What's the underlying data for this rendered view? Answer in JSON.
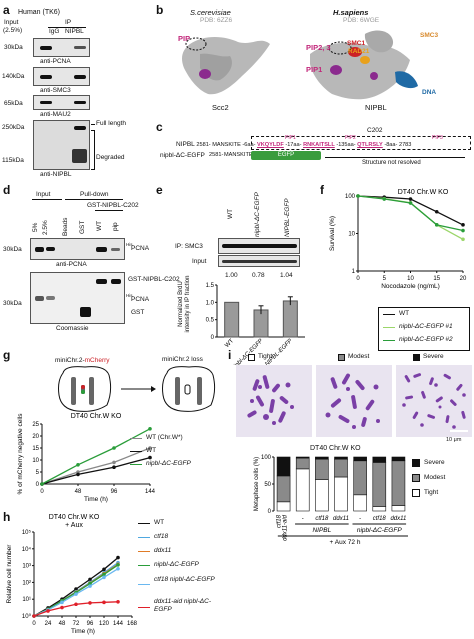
{
  "panel_a": {
    "label": "a",
    "title": "Human (TK6)",
    "input_label": "Input",
    "input_pct": "(2.5%)",
    "ip_label": "IP",
    "lane_igg": "IgG",
    "lane_nipbl": "NIPBL",
    "mw": [
      "30kDa",
      "140kDa",
      "65kDa",
      "250kDa",
      "115kDa"
    ],
    "antibodies": [
      "anti-PCNA",
      "anti-SMC3",
      "anti-MAU2",
      "anti-NIPBL"
    ],
    "full_length": "Full length",
    "degraded": "Degraded"
  },
  "panel_b": {
    "label": "b",
    "left_species": "S.cerevisiae",
    "left_pdb": "PDB: 6ZZ6",
    "left_pip": "PIP",
    "left_protein": "Scc2",
    "right_species": "H.sapiens",
    "right_pdb": "PDB: 6WGE",
    "right_smc3": "SMC3",
    "right_smc1": "SMC1",
    "right_rad21": "RAD21",
    "right_pip23": "PIP2, 3",
    "right_pip1": "PIP1",
    "right_dna": "DNA",
    "right_protein": "NIPBL"
  },
  "panel_c": {
    "label": "c",
    "c202": "C202",
    "nipbl_name": "NIPBL",
    "nipbl_start": "2581-",
    "motif": "MANSKITE",
    "gap1": "-6aa-",
    "pip1_label": "PIP1",
    "pip1_seq": "VKQYLDF",
    "gap2": "-17aa-",
    "pip2_label": "PIP2",
    "pip2_seq": "RNKAITSLL",
    "gap3": "-135aa-",
    "pip3_label": "PIP3",
    "pip3_seq": "QTLRSLY",
    "gap4": "-8aa-",
    "nipbl_end": "2783",
    "mut_name": "nipbl-ΔC-EGFP",
    "mut_start": "2581-",
    "egfp": "EGFP",
    "unresolved": "Structure not resolved"
  },
  "panel_d": {
    "label": "d",
    "input": "Input",
    "pulldown": "Pull-down",
    "fusion_header": "GST-NIPBL-C202",
    "lanes": [
      "5%",
      "2.5%",
      "Beads",
      "GST",
      "WT",
      "pip"
    ],
    "mw": [
      "30kDa",
      "30kDa"
    ],
    "pcna": "PCNA",
    "his": "His",
    "anti_pcna": "anti-PCNA",
    "gst_fusion": "GST-NIPBL-C202",
    "his_pcna": "PCNA",
    "gst": "GST",
    "coomassie": "Coomassie"
  },
  "panel_e": {
    "label": "e",
    "lanes": [
      "WT",
      "nipbl-ΔC-EGFP",
      "NIPBL-EGFP"
    ],
    "ip_label": "IP: SMC3",
    "input_label": "Input",
    "values_text": [
      "1.00",
      "0.78",
      "1.04"
    ],
    "ylabel": "Normalized BrdU intensity in IP fraction"
  },
  "panel_f": {
    "label": "f",
    "legend": [
      "WT",
      "nipbl-ΔC-EGFP #1",
      "nipbl-ΔC-EGFP #2"
    ]
  },
  "panel_g": {
    "label": "g",
    "mini_left": "miniChr.2-",
    "mcherry": "mCherry",
    "mini_right": "miniChr.2 loss",
    "legend": [
      "WT (Chr.W*)",
      "WT",
      "nipbl-ΔC-EGFP"
    ]
  },
  "panel_h": {
    "label": "h",
    "legend": [
      "WT",
      "ctf18",
      "ddx11",
      "nipbl-ΔC-EGFP",
      "ctf18 nipbl-ΔC-EGFP",
      "ddx11-aid nipbl-ΔC-EGFP"
    ]
  },
  "panel_i": {
    "label": "i",
    "legend_top": [
      "Tight",
      "Modest",
      "Severe"
    ],
    "scale_bar": "10 μm",
    "legend_right": [
      "Severe",
      "Modest",
      "Tight"
    ],
    "x_labels": [
      "ctf18 ddx11-aid",
      "-",
      "ctf18",
      "ddx11",
      "-",
      "ctf18",
      "ddx11"
    ],
    "group1": "NIPBL",
    "group2": "nipbl-ΔC-EGFP",
    "treatment": "+ Aux 72 h"
  },
  "chart_data": [
    {
      "id": "e-bar",
      "type": "bar",
      "categories": [
        "WT",
        "nipbl-ΔC-EGFP",
        "NIPBL-EGFP"
      ],
      "values": [
        1.0,
        0.78,
        1.04
      ],
      "errors": [
        0.0,
        0.12,
        0.12
      ],
      "title": "",
      "ylabel": "Normalized BrdU intensity in IP fraction",
      "ylim": [
        0,
        1.5
      ],
      "yticks": [
        "0",
        "0.5",
        "1.0",
        "1.5"
      ]
    },
    {
      "id": "f-survival",
      "type": "line",
      "title": "DT40 Chr.W KO",
      "xlabel": "Nocodazole (ng/mL)",
      "ylabel": "Survival (%)",
      "yscale": "log",
      "ylim": [
        1,
        100
      ],
      "yticks": [
        "1",
        "10",
        "100"
      ],
      "xlim": [
        0,
        20
      ],
      "xticks": [
        "0",
        "5",
        "10",
        "15",
        "20"
      ],
      "x": [
        0,
        5,
        10,
        15,
        20
      ],
      "series": [
        {
          "name": "WT",
          "color": "#111111",
          "values": [
            100,
            93,
            83,
            38,
            17
          ]
        },
        {
          "name": "nipbl-ΔC-EGFP #1",
          "color": "#9bd66a",
          "values": [
            100,
            85,
            66,
            17,
            7
          ]
        },
        {
          "name": "nipbl-ΔC-EGFP #2",
          "color": "#2a9d3a",
          "values": [
            100,
            83,
            65,
            17,
            12
          ]
        }
      ]
    },
    {
      "id": "g-loss",
      "type": "line",
      "title": "DT40 Chr.W KO",
      "xlabel": "Time (h)",
      "ylabel": "% of mCherry negative cells",
      "ylim": [
        0,
        25
      ],
      "yticks": [
        "0",
        "5",
        "10",
        "15",
        "20",
        "25"
      ],
      "xlim": [
        0,
        144
      ],
      "xticks": [
        "0",
        "48",
        "96",
        "144"
      ],
      "x": [
        0,
        48,
        96,
        144
      ],
      "series": [
        {
          "name": "WT (Chr.W*)",
          "color": "#888888",
          "values": [
            0,
            5,
            9,
            15
          ]
        },
        {
          "name": "WT",
          "color": "#111111",
          "values": [
            0,
            4,
            7,
            11
          ]
        },
        {
          "name": "nipbl-ΔC-EGFP",
          "color": "#2a9d3a",
          "values": [
            0,
            8,
            15,
            23
          ]
        }
      ]
    },
    {
      "id": "h-growth",
      "type": "line",
      "title": "DT40 Chr.W KO + Aux",
      "xlabel": "Time (h)",
      "ylabel": "Relative cell number",
      "yscale": "log",
      "ylim": [
        1,
        100000
      ],
      "yticks": [
        "10⁰",
        "10¹",
        "10²",
        "10³",
        "10⁴",
        "10⁵"
      ],
      "xlim": [
        0,
        168
      ],
      "xticks": [
        "0",
        "24",
        "48",
        "72",
        "96",
        "120",
        "144",
        "168"
      ],
      "x": [
        0,
        24,
        48,
        72,
        96,
        120,
        144
      ],
      "series": [
        {
          "name": "WT",
          "color": "#111111",
          "values": [
            1,
            3,
            10,
            40,
            150,
            600,
            3000
          ]
        },
        {
          "name": "ctf18",
          "color": "#4fa8e0",
          "values": [
            1,
            2.5,
            8,
            28,
            100,
            380,
            1500
          ]
        },
        {
          "name": "ddx11",
          "color": "#e07b27",
          "values": [
            1,
            2.5,
            8,
            26,
            90,
            330,
            1200
          ]
        },
        {
          "name": "nipbl-ΔC-EGFP",
          "color": "#2a9d3a",
          "values": [
            1,
            2.5,
            8,
            25,
            85,
            300,
            1100
          ]
        },
        {
          "name": "ctf18 nipbl-ΔC-EGFP",
          "color": "#6ab8f0",
          "values": [
            1,
            2.3,
            6.5,
            20,
            60,
            200,
            650
          ]
        },
        {
          "name": "ddx11-aid nipbl-ΔC-EGFP",
          "color": "#e0202a",
          "values": [
            1,
            2,
            3.2,
            5,
            6,
            6.5,
            7
          ]
        }
      ]
    },
    {
      "id": "i-stacked",
      "type": "bar",
      "stacked": true,
      "ylabel": "Metaphase cells (%)",
      "ylim": [
        0,
        100
      ],
      "yticks": [
        "0",
        "50",
        "100"
      ],
      "categories": [
        "ctf18 ddx11-aid",
        "NIPBL -",
        "NIPBL ctf18",
        "NIPBL ddx11",
        "nipbl-ΔC-EGFP -",
        "nipbl-ΔC-EGFP ctf18",
        "nipbl-ΔC-EGFP ddx11"
      ],
      "series": [
        {
          "name": "Tight",
          "color": "#ffffff",
          "values": [
            17,
            78,
            58,
            63,
            30,
            8,
            10
          ]
        },
        {
          "name": "Modest",
          "color": "#8a8a8a",
          "values": [
            48,
            20,
            38,
            33,
            63,
            82,
            83
          ]
        },
        {
          "name": "Severe",
          "color": "#111111",
          "values": [
            35,
            2,
            4,
            4,
            7,
            10,
            7
          ]
        }
      ]
    }
  ]
}
